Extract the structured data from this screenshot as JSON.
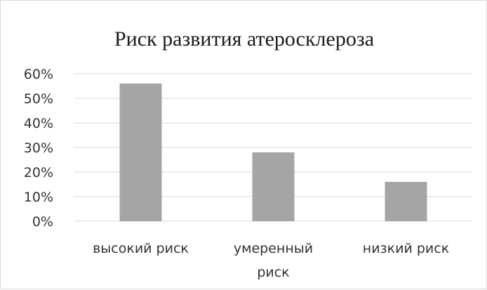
{
  "chart_data": {
    "type": "bar",
    "title": "Риск развития атеросклероза",
    "categories": [
      "высокий риск",
      "умеренный риск",
      "низкий риск"
    ],
    "category_lines": [
      [
        "высокий риск"
      ],
      [
        "умеренный",
        "риск"
      ],
      [
        "низкий риск"
      ]
    ],
    "values": [
      0.56,
      0.28,
      0.16
    ],
    "ylim": [
      0,
      0.6
    ],
    "yticks": [
      0,
      0.1,
      0.2,
      0.3,
      0.4,
      0.5,
      0.6
    ],
    "ytick_labels": [
      "0%",
      "10%",
      "20%",
      "30%",
      "40%",
      "50%",
      "60%"
    ],
    "xlabel": "",
    "ylabel": "",
    "grid": true,
    "legend": "none",
    "bar_color": "#a5a5a5",
    "grid_color": "#d9d9d9"
  }
}
